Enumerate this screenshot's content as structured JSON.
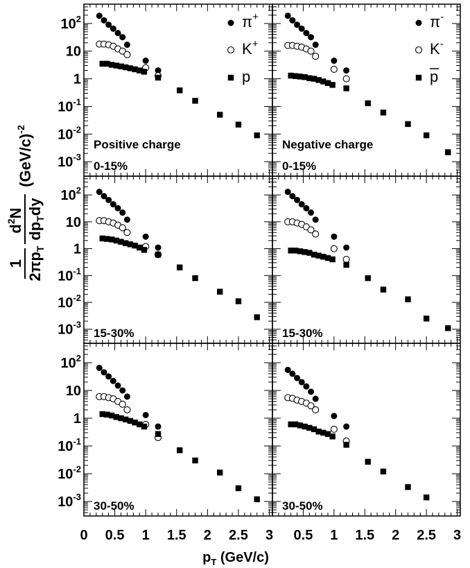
{
  "figure": {
    "xaxis_label": "p",
    "xaxis_label_sub": "T",
    "xaxis_label_unit": " (GeV/c)",
    "yaxis_label": {
      "num": "1",
      "den_pre": "2πp",
      "den_sub": "T",
      "frac2_num_pre": "d",
      "frac2_num_sup": "2",
      "frac2_num_post": "N",
      "frac2_den_pre": "dp",
      "frac2_den_sub": "T",
      "frac2_den_post": "dy",
      "unit": "(GeV/c)",
      "unit_sup": "-2"
    }
  },
  "chart_data": [
    {
      "type": "scatter",
      "panel": "top-left",
      "annotation": "Positive charge",
      "centrality": "0-15%",
      "xlim": [
        0,
        3.05
      ],
      "ylim": [
        0.0003,
        500
      ],
      "yscale": "log",
      "legend": [
        {
          "main": "π",
          "sup": "+",
          "marker": "filled-circle"
        },
        {
          "main": "K",
          "sup": "+",
          "marker": "open-circle"
        },
        {
          "main": "p",
          "sup": "",
          "marker": "filled-square"
        }
      ],
      "series": [
        {
          "name": "π+",
          "marker": "filled-circle",
          "x": [
            0.25,
            0.325,
            0.4,
            0.475,
            0.55,
            0.625,
            0.7,
            1.0,
            1.2
          ],
          "y": [
            190,
            130,
            90,
            65,
            45,
            32,
            17,
            4.5,
            2.0
          ]
        },
        {
          "name": "K+",
          "marker": "open-circle",
          "x": [
            0.25,
            0.325,
            0.4,
            0.475,
            0.55,
            0.625,
            0.7,
            1.0,
            1.2
          ],
          "y": [
            18,
            18,
            17,
            15,
            12,
            10,
            7.5,
            2.5,
            1.3
          ]
        },
        {
          "name": "p",
          "marker": "filled-square",
          "x": [
            0.3,
            0.375,
            0.45,
            0.525,
            0.6,
            0.675,
            0.75,
            0.825,
            0.9,
            0.975,
            1.2,
            1.55,
            1.8,
            2.2,
            2.5,
            2.8
          ],
          "y": [
            3.5,
            3.5,
            3.2,
            3.0,
            2.8,
            2.6,
            2.4,
            2.2,
            2.0,
            1.8,
            1.1,
            0.38,
            0.16,
            0.05,
            0.022,
            0.009
          ]
        }
      ]
    },
    {
      "type": "scatter",
      "panel": "top-right",
      "annotation": "Negative charge",
      "centrality": "0-15%",
      "xlim": [
        0,
        3.05
      ],
      "ylim": [
        0.0003,
        500
      ],
      "yscale": "log",
      "legend": [
        {
          "main": "π",
          "sup": "-",
          "marker": "filled-circle"
        },
        {
          "main": "K",
          "sup": "-",
          "marker": "open-circle"
        },
        {
          "main": "p",
          "sup": "",
          "marker": "filled-square",
          "overline": true
        }
      ],
      "series": [
        {
          "name": "π-",
          "marker": "filled-circle",
          "x": [
            0.25,
            0.325,
            0.4,
            0.475,
            0.55,
            0.625,
            0.7,
            1.0,
            1.2
          ],
          "y": [
            190,
            130,
            90,
            65,
            45,
            32,
            17,
            4.5,
            2.0
          ]
        },
        {
          "name": "K-",
          "marker": "open-circle",
          "x": [
            0.25,
            0.325,
            0.4,
            0.475,
            0.55,
            0.625,
            0.7,
            1.0,
            1.2
          ],
          "y": [
            16,
            16,
            15,
            14,
            12,
            10,
            6.5,
            2.2,
            1.0
          ]
        },
        {
          "name": "pbar",
          "marker": "filled-square",
          "x": [
            0.3,
            0.375,
            0.45,
            0.525,
            0.6,
            0.675,
            0.75,
            0.825,
            0.9,
            0.975,
            1.2,
            1.55,
            1.8,
            2.2,
            2.5,
            2.85
          ],
          "y": [
            1.3,
            1.25,
            1.2,
            1.15,
            1.05,
            1.0,
            0.9,
            0.8,
            0.7,
            0.6,
            0.45,
            0.13,
            0.06,
            0.023,
            0.009,
            0.0022
          ]
        }
      ]
    },
    {
      "type": "scatter",
      "panel": "middle-left",
      "annotation": "",
      "centrality": "15-30%",
      "xlim": [
        0,
        3.05
      ],
      "ylim": [
        0.0003,
        500
      ],
      "yscale": "log",
      "series": [
        {
          "name": "π+",
          "marker": "filled-circle",
          "x": [
            0.25,
            0.325,
            0.4,
            0.475,
            0.55,
            0.625,
            0.7,
            1.0,
            1.2
          ],
          "y": [
            130,
            90,
            65,
            45,
            32,
            22,
            12,
            2.8,
            1.1
          ]
        },
        {
          "name": "K+",
          "marker": "open-circle",
          "x": [
            0.25,
            0.325,
            0.4,
            0.475,
            0.55,
            0.625,
            0.7,
            1.0,
            1.2
          ],
          "y": [
            11,
            11,
            10,
            9,
            7.5,
            6,
            4,
            1.2,
            0.6
          ]
        },
        {
          "name": "p",
          "marker": "filled-square",
          "x": [
            0.3,
            0.375,
            0.45,
            0.525,
            0.6,
            0.675,
            0.75,
            0.825,
            0.9,
            0.975,
            1.2,
            1.55,
            1.8,
            2.2,
            2.5,
            2.8
          ],
          "y": [
            2.4,
            2.3,
            2.2,
            2.0,
            1.8,
            1.6,
            1.45,
            1.3,
            1.1,
            0.9,
            0.6,
            0.2,
            0.08,
            0.025,
            0.011,
            0.0028
          ]
        }
      ]
    },
    {
      "type": "scatter",
      "panel": "middle-right",
      "annotation": "",
      "centrality": "15-30%",
      "xlim": [
        0,
        3.05
      ],
      "ylim": [
        0.0003,
        500
      ],
      "yscale": "log",
      "series": [
        {
          "name": "π-",
          "marker": "filled-circle",
          "x": [
            0.25,
            0.325,
            0.4,
            0.475,
            0.55,
            0.625,
            0.7,
            1.0,
            1.2
          ],
          "y": [
            130,
            90,
            65,
            45,
            32,
            22,
            12,
            2.8,
            1.1
          ]
        },
        {
          "name": "K-",
          "marker": "open-circle",
          "x": [
            0.25,
            0.325,
            0.4,
            0.475,
            0.55,
            0.625,
            0.7,
            1.0,
            1.2
          ],
          "y": [
            10,
            10,
            9,
            8,
            6.5,
            5,
            3.5,
            1.0,
            0.4
          ]
        },
        {
          "name": "pbar",
          "marker": "filled-square",
          "x": [
            0.3,
            0.375,
            0.45,
            0.525,
            0.6,
            0.675,
            0.75,
            0.825,
            0.9,
            0.975,
            1.2,
            1.55,
            1.8,
            2.2,
            2.5,
            2.85
          ],
          "y": [
            0.85,
            0.85,
            0.8,
            0.75,
            0.7,
            0.6,
            0.55,
            0.5,
            0.45,
            0.4,
            0.25,
            0.08,
            0.03,
            0.013,
            0.0025,
            0.0011
          ]
        }
      ]
    },
    {
      "type": "scatter",
      "panel": "bottom-left",
      "annotation": "",
      "centrality": "30-50%",
      "xlim": [
        0,
        3.05
      ],
      "ylim": [
        0.0003,
        500
      ],
      "yscale": "log",
      "series": [
        {
          "name": "π+",
          "marker": "filled-circle",
          "x": [
            0.25,
            0.325,
            0.4,
            0.475,
            0.55,
            0.625,
            0.7,
            1.0,
            1.2
          ],
          "y": [
            65,
            45,
            32,
            22,
            15,
            10,
            6,
            1.3,
            0.5
          ]
        },
        {
          "name": "K+",
          "marker": "open-circle",
          "x": [
            0.25,
            0.325,
            0.4,
            0.475,
            0.55,
            0.625,
            0.7,
            1.0,
            1.2
          ],
          "y": [
            6,
            6,
            5.5,
            5,
            4,
            3.2,
            2.0,
            0.6,
            0.2
          ]
        },
        {
          "name": "p",
          "marker": "filled-square",
          "x": [
            0.3,
            0.375,
            0.45,
            0.525,
            0.6,
            0.675,
            0.75,
            0.825,
            0.9,
            0.975,
            1.2,
            1.55,
            1.8,
            2.2,
            2.5,
            2.8
          ],
          "y": [
            1.4,
            1.35,
            1.25,
            1.1,
            1.0,
            0.9,
            0.8,
            0.7,
            0.6,
            0.5,
            0.27,
            0.07,
            0.03,
            0.011,
            0.003,
            0.0012
          ]
        }
      ]
    },
    {
      "type": "scatter",
      "panel": "bottom-right",
      "annotation": "",
      "centrality": "30-50%",
      "xlim": [
        0,
        3.05
      ],
      "ylim": [
        0.0003,
        500
      ],
      "yscale": "log",
      "series": [
        {
          "name": "π-",
          "marker": "filled-circle",
          "x": [
            0.25,
            0.325,
            0.4,
            0.475,
            0.55,
            0.625,
            0.7,
            1.0,
            1.2
          ],
          "y": [
            55,
            40,
            28,
            20,
            14,
            9,
            5,
            1.2,
            0.5
          ]
        },
        {
          "name": "K-",
          "marker": "open-circle",
          "x": [
            0.25,
            0.325,
            0.4,
            0.475,
            0.55,
            0.625,
            0.7,
            1.0,
            1.2
          ],
          "y": [
            5.5,
            5.2,
            4.5,
            4,
            3.5,
            2.8,
            2.0,
            0.4,
            0.15
          ]
        },
        {
          "name": "pbar",
          "marker": "filled-square",
          "x": [
            0.3,
            0.375,
            0.45,
            0.525,
            0.6,
            0.675,
            0.75,
            0.825,
            0.9,
            0.975,
            1.2,
            1.55,
            1.8,
            2.2,
            2.5
          ],
          "y": [
            0.6,
            0.6,
            0.55,
            0.5,
            0.45,
            0.4,
            0.33,
            0.3,
            0.27,
            0.22,
            0.11,
            0.027,
            0.012,
            0.0033,
            0.0014
          ]
        }
      ]
    }
  ],
  "xticks": [
    "0",
    "0.5",
    "1",
    "1.5",
    "2",
    "2.5",
    "3"
  ],
  "xtick_values": [
    0,
    0.5,
    1,
    1.5,
    2,
    2.5,
    3
  ],
  "yticks": [
    {
      "base": "10",
      "exp": "-3",
      "value": 0.001
    },
    {
      "base": "10",
      "exp": "-2",
      "value": 0.01
    },
    {
      "base": "10",
      "exp": "-1",
      "value": 0.1
    },
    {
      "base": "1",
      "exp": "",
      "value": 1
    },
    {
      "base": "10",
      "exp": "",
      "value": 10
    },
    {
      "base": "10",
      "exp": "2",
      "value": 100
    }
  ]
}
